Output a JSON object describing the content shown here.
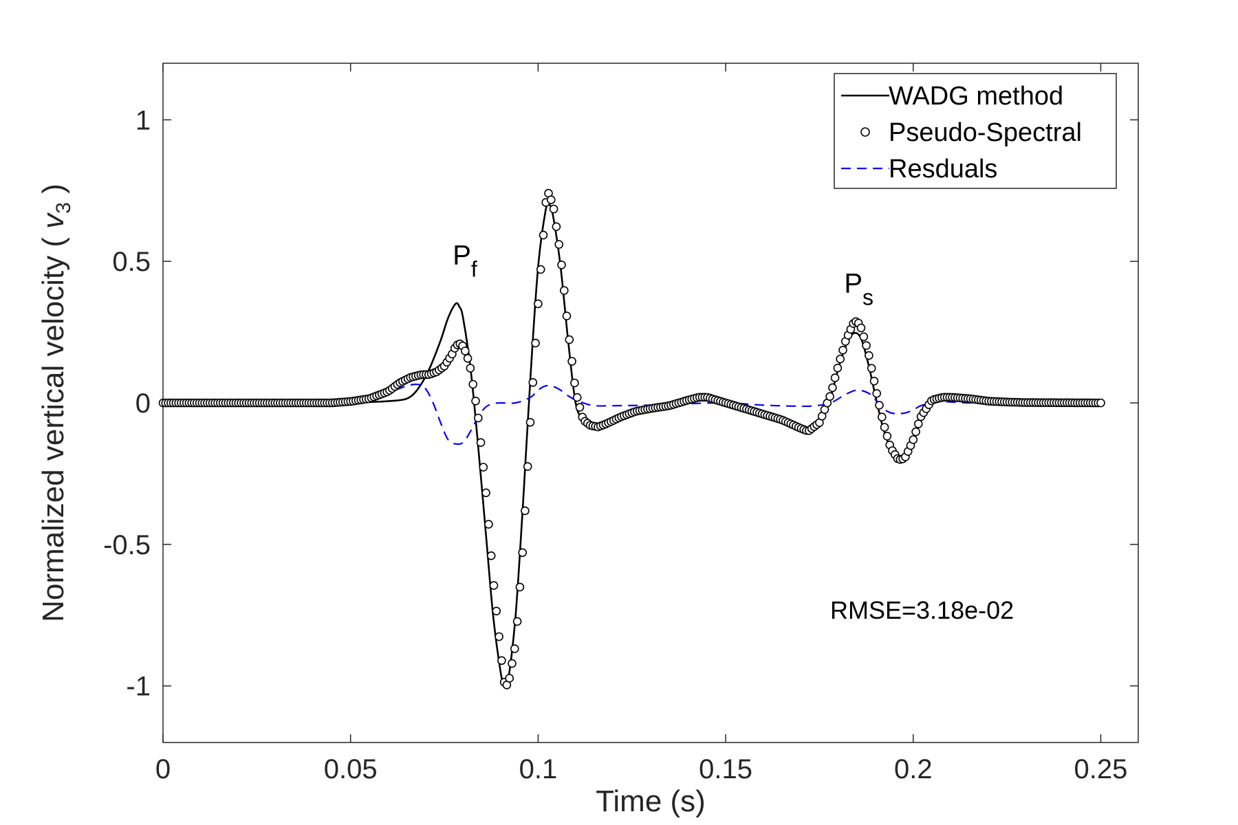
{
  "chart_data": {
    "type": "line",
    "xlabel": "Time (s)",
    "ylabel_main": "Normalized vertical velocity ( ",
    "ylabel_var": "v",
    "ylabel_sub": "3",
    "ylabel_close": " )",
    "xlim": [
      0,
      0.26
    ],
    "ylim": [
      -1.2,
      1.2
    ],
    "xticks": [
      0,
      0.05,
      0.1,
      0.15,
      0.2,
      0.25
    ],
    "xtick_labels": [
      "0",
      "0.05",
      "0.1",
      "0.15",
      "0.2",
      "0.25"
    ],
    "yticks": [
      -1,
      -0.5,
      0,
      0.5,
      1
    ],
    "ytick_labels": [
      "-1",
      "-0.5",
      "0",
      "0.5",
      "1"
    ],
    "grid": false,
    "legend_position": "top-right",
    "series": [
      {
        "name": "WADG method",
        "style": "solid",
        "color": "#000000",
        "x": [
          0,
          0.045,
          0.05,
          0.055,
          0.06,
          0.065,
          0.068,
          0.071,
          0.074,
          0.076,
          0.078,
          0.079,
          0.08,
          0.082,
          0.084,
          0.086,
          0.088,
          0.09,
          0.091,
          0.092,
          0.094,
          0.096,
          0.098,
          0.1,
          0.102,
          0.103,
          0.104,
          0.106,
          0.108,
          0.11,
          0.112,
          0.114,
          0.116,
          0.118,
          0.122,
          0.126,
          0.13,
          0.135,
          0.14,
          0.145,
          0.15,
          0.155,
          0.16,
          0.165,
          0.17,
          0.173,
          0.176,
          0.178,
          0.18,
          0.182,
          0.184,
          0.186,
          0.188,
          0.19,
          0.192,
          0.194,
          0.196,
          0.198,
          0.2,
          0.202,
          0.205,
          0.208,
          0.21,
          0.215,
          0.22,
          0.225,
          0.23,
          0.25
        ],
        "y": [
          0,
          0,
          0.0,
          0.003,
          0.006,
          0.015,
          0.05,
          0.12,
          0.22,
          0.3,
          0.35,
          0.34,
          0.3,
          0.12,
          -0.15,
          -0.45,
          -0.75,
          -0.95,
          -1.0,
          -0.98,
          -0.75,
          -0.35,
          0.1,
          0.48,
          0.68,
          0.7,
          0.66,
          0.48,
          0.22,
          0.0,
          -0.06,
          -0.08,
          -0.085,
          -0.075,
          -0.05,
          -0.03,
          -0.02,
          -0.01,
          0.005,
          0.01,
          0.005,
          -0.01,
          -0.03,
          -0.05,
          -0.09,
          -0.09,
          -0.05,
          0.02,
          0.12,
          0.2,
          0.245,
          0.23,
          0.14,
          0.02,
          -0.09,
          -0.16,
          -0.19,
          -0.19,
          -0.14,
          -0.06,
          0.01,
          0.02,
          0.02,
          0.015,
          0.005,
          0.002,
          0.0,
          0
        ]
      },
      {
        "name": "Pseudo-Spectral",
        "style": "circles",
        "color": "#000000",
        "x": [
          0,
          0.045,
          0.05,
          0.055,
          0.06,
          0.063,
          0.066,
          0.069,
          0.071,
          0.073,
          0.075,
          0.077,
          0.078,
          0.079,
          0.08,
          0.081,
          0.082,
          0.084,
          0.086,
          0.088,
          0.09,
          0.091,
          0.092,
          0.094,
          0.096,
          0.098,
          0.1,
          0.102,
          0.1025,
          0.104,
          0.106,
          0.108,
          0.11,
          0.112,
          0.114,
          0.116,
          0.118,
          0.122,
          0.126,
          0.13,
          0.135,
          0.14,
          0.143,
          0.145,
          0.15,
          0.155,
          0.16,
          0.165,
          0.17,
          0.172,
          0.175,
          0.178,
          0.18,
          0.182,
          0.184,
          0.185,
          0.186,
          0.188,
          0.19,
          0.192,
          0.194,
          0.196,
          0.197,
          0.198,
          0.2,
          0.202,
          0.205,
          0.208,
          0.21,
          0.215,
          0.22,
          0.225,
          0.23,
          0.25
        ],
        "y": [
          0,
          0.0,
          0.005,
          0.015,
          0.04,
          0.07,
          0.09,
          0.1,
          0.1,
          0.11,
          0.13,
          0.17,
          0.2,
          0.21,
          0.2,
          0.17,
          0.12,
          -0.05,
          -0.3,
          -0.62,
          -0.88,
          -0.99,
          -1.0,
          -0.85,
          -0.5,
          -0.05,
          0.35,
          0.7,
          0.75,
          0.7,
          0.52,
          0.26,
          0.04,
          -0.06,
          -0.08,
          -0.085,
          -0.075,
          -0.05,
          -0.03,
          -0.02,
          -0.01,
          0.01,
          0.02,
          0.02,
          0.0,
          -0.02,
          -0.04,
          -0.06,
          -0.09,
          -0.1,
          -0.07,
          0.03,
          0.13,
          0.22,
          0.28,
          0.29,
          0.27,
          0.18,
          0.05,
          -0.07,
          -0.16,
          -0.2,
          -0.2,
          -0.19,
          -0.13,
          -0.05,
          0.01,
          0.02,
          0.02,
          0.015,
          0.006,
          0.003,
          0.001,
          0
        ]
      },
      {
        "name": "Resduals",
        "style": "dashed",
        "color": "#0000ff",
        "x": [
          0,
          0.045,
          0.05,
          0.055,
          0.06,
          0.065,
          0.068,
          0.07,
          0.072,
          0.074,
          0.076,
          0.078,
          0.08,
          0.082,
          0.084,
          0.086,
          0.088,
          0.09,
          0.094,
          0.098,
          0.1,
          0.102,
          0.104,
          0.106,
          0.108,
          0.11,
          0.112,
          0.115,
          0.12,
          0.13,
          0.14,
          0.15,
          0.16,
          0.17,
          0.174,
          0.178,
          0.182,
          0.185,
          0.188,
          0.19,
          0.192,
          0.194,
          0.196,
          0.198,
          0.2,
          0.202,
          0.205,
          0.208,
          0.21,
          0.215,
          0.22,
          0.25
        ],
        "y": [
          0,
          0,
          0.003,
          0.012,
          0.035,
          0.06,
          0.065,
          0.05,
          0.0,
          -0.07,
          -0.13,
          -0.145,
          -0.14,
          -0.1,
          -0.05,
          -0.015,
          -0.003,
          0.0,
          0.0,
          0.02,
          0.045,
          0.06,
          0.058,
          0.045,
          0.025,
          0.01,
          0.0,
          -0.01,
          -0.01,
          -0.008,
          -0.003,
          0.0,
          -0.008,
          -0.012,
          -0.01,
          0.0,
          0.03,
          0.045,
          0.035,
          0.01,
          -0.02,
          -0.035,
          -0.038,
          -0.035,
          -0.025,
          -0.01,
          0.0,
          0.005,
          0.003,
          0.0,
          0.0,
          0
        ]
      }
    ],
    "annotations": [
      {
        "main": "P",
        "sub": "f",
        "x": 0.0805,
        "y": 0.49
      },
      {
        "main": "P",
        "sub": "s",
        "x": 0.1855,
        "y": 0.39
      }
    ],
    "rmse_text": "RMSE=3.18e-02"
  }
}
